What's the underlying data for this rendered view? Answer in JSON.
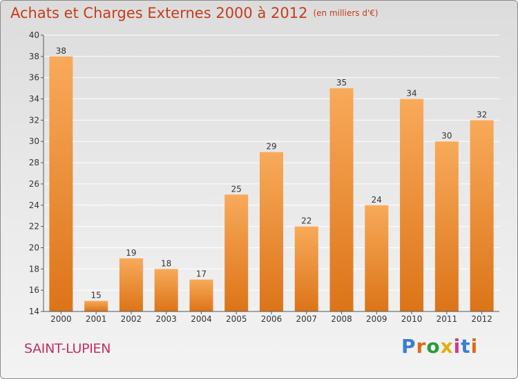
{
  "header": {
    "title": "Achats et Charges Externes 2000 à 2012",
    "unit": "(en milliers d'€)"
  },
  "footer": {
    "commune": "SAINT-LUPIEN",
    "logo_text": "Proxiti",
    "logo_colors": [
      "#3a7fd0",
      "#e06a1a",
      "#2a9a3a",
      "#e0b010",
      "#d03a8a",
      "#3a7fd0",
      "#e06a1a"
    ]
  },
  "colors": {
    "title": "#c43c1c",
    "bar_top": "#f8aa5a",
    "bar_bottom": "#dc7418",
    "axis": "#555555",
    "grid": "#ffffff"
  },
  "chart_data": {
    "type": "bar",
    "title": "Achats et Charges Externes 2000 à 2012",
    "subtitle": "(en milliers d'€)",
    "categories": [
      "2000",
      "2001",
      "2002",
      "2003",
      "2004",
      "2005",
      "2006",
      "2007",
      "2008",
      "2009",
      "2010",
      "2011",
      "2012"
    ],
    "values": [
      38,
      15,
      19,
      18,
      17,
      25,
      29,
      22,
      35,
      24,
      34,
      30,
      32
    ],
    "ylim": [
      14,
      40
    ],
    "yticks": [
      14,
      16,
      18,
      20,
      22,
      24,
      26,
      28,
      30,
      32,
      34,
      36,
      38,
      40
    ],
    "grid": true,
    "data_labels": true
  }
}
